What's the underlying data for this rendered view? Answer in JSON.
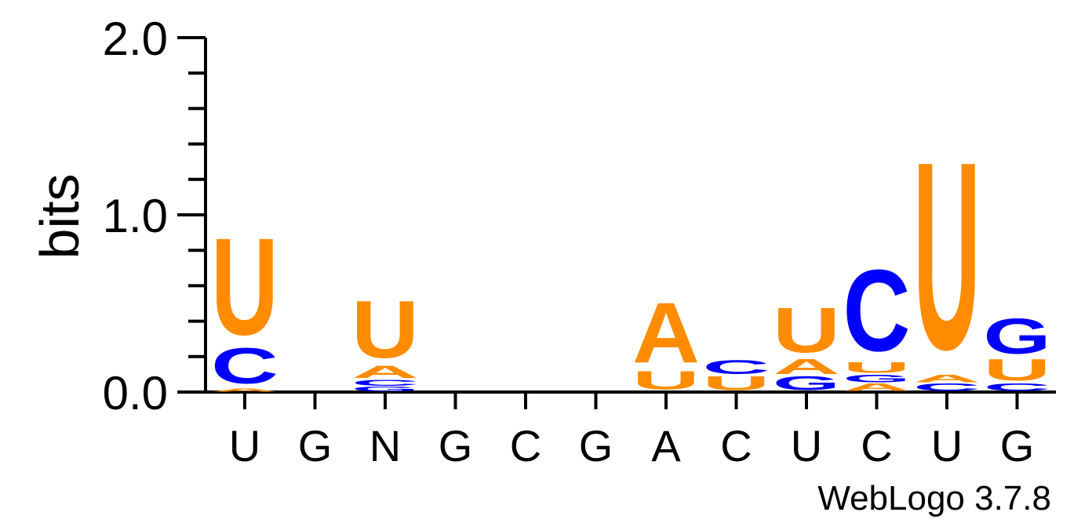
{
  "chart_data": {
    "type": "sequence-logo",
    "ylabel": "bits",
    "ylim": [
      0,
      2.0
    ],
    "ytick_labels": [
      "0.0",
      "1.0",
      "2.0"
    ],
    "minor_tick_step": 0.2,
    "positions": [
      "U",
      "G",
      "N",
      "G",
      "C",
      "G",
      "A",
      "C",
      "U",
      "C",
      "U",
      "G"
    ],
    "colors": {
      "U": "#ff8c00",
      "A": "#ff8c00",
      "C": "#0000ff",
      "G": "#0000ff"
    },
    "stacks": [
      [
        {
          "letter": "A",
          "bits": 0.02
        },
        {
          "letter": "C",
          "bits": 0.23
        },
        {
          "letter": "U",
          "bits": 0.63
        }
      ],
      [],
      [
        {
          "letter": "G",
          "bits": 0.03
        },
        {
          "letter": "C",
          "bits": 0.04
        },
        {
          "letter": "A",
          "bits": 0.08
        },
        {
          "letter": "U",
          "bits": 0.37
        }
      ],
      [],
      [],
      [],
      [
        {
          "letter": "U",
          "bits": 0.12
        },
        {
          "letter": "A",
          "bits": 0.39
        }
      ],
      [
        {
          "letter": "U",
          "bits": 0.09
        },
        {
          "letter": "C",
          "bits": 0.09
        }
      ],
      [
        {
          "letter": "G",
          "bits": 0.09
        },
        {
          "letter": "A",
          "bits": 0.1
        },
        {
          "letter": "U",
          "bits": 0.29
        }
      ],
      [
        {
          "letter": "A",
          "bits": 0.05
        },
        {
          "letter": "G",
          "bits": 0.05
        },
        {
          "letter": "U",
          "bits": 0.07
        },
        {
          "letter": "C",
          "bits": 0.53
        }
      ],
      [
        {
          "letter": "C",
          "bits": 0.05
        },
        {
          "letter": "A",
          "bits": 0.05
        },
        {
          "letter": "U",
          "bits": 1.22
        }
      ],
      [
        {
          "letter": "C",
          "bits": 0.05
        },
        {
          "letter": "U",
          "bits": 0.14
        },
        {
          "letter": "G",
          "bits": 0.23
        }
      ]
    ]
  },
  "footer": {
    "credit": "WebLogo 3.7.8"
  }
}
